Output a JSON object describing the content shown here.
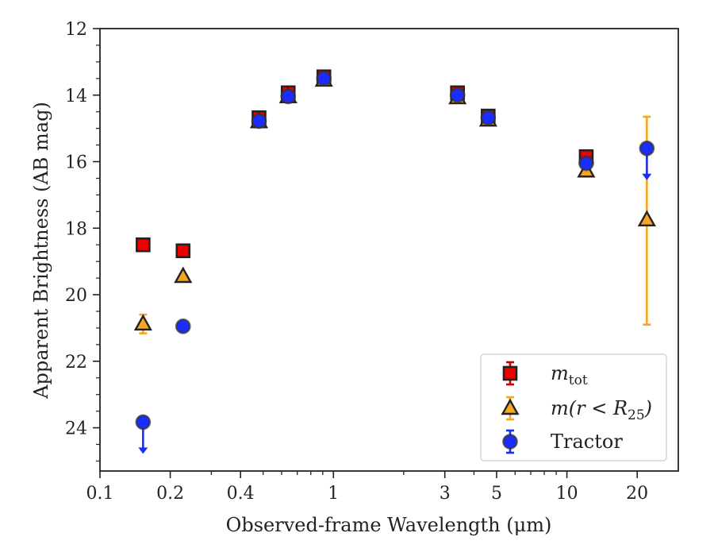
{
  "chart_data": {
    "type": "scatter",
    "xlabel": "Observed-frame Wavelength (μm)",
    "ylabel": "Apparent Brightness (AB mag)",
    "xscale": "log",
    "xlim": [
      0.1,
      30
    ],
    "ylim": [
      25.3,
      12
    ],
    "y_inverted": true,
    "x_ticks": [
      {
        "value": 0.1,
        "label": "0.1"
      },
      {
        "value": 0.2,
        "label": "0.2"
      },
      {
        "value": 0.4,
        "label": "0.4"
      },
      {
        "value": 1,
        "label": "1"
      },
      {
        "value": 3,
        "label": "3"
      },
      {
        "value": 5,
        "label": "5"
      },
      {
        "value": 10,
        "label": "10"
      },
      {
        "value": 20,
        "label": "20"
      }
    ],
    "y_ticks": [
      {
        "value": 12,
        "label": "12"
      },
      {
        "value": 14,
        "label": "14"
      },
      {
        "value": 16,
        "label": "16"
      },
      {
        "value": 18,
        "label": "18"
      },
      {
        "value": 20,
        "label": "20"
      },
      {
        "value": 22,
        "label": "22"
      },
      {
        "value": 24,
        "label": "24"
      }
    ],
    "grid": false,
    "legend_position": "lower-right",
    "series": [
      {
        "name": "m_tot",
        "legend": {
          "base": "m",
          "sub": "tot"
        },
        "marker": "square",
        "color": "#ee0000",
        "errcolor": "#cc0000",
        "points": [
          {
            "x": 0.153,
            "y": 18.5
          },
          {
            "x": 0.227,
            "y": 18.68
          },
          {
            "x": 0.48,
            "y": 14.68,
            "yerr": [
              0.12,
              0.12
            ]
          },
          {
            "x": 0.64,
            "y": 13.93
          },
          {
            "x": 0.91,
            "y": 13.45
          },
          {
            "x": 3.4,
            "y": 13.93
          },
          {
            "x": 4.6,
            "y": 14.63
          },
          {
            "x": 12.1,
            "y": 15.85
          }
        ]
      },
      {
        "name": "m(r < R25)",
        "legend": {
          "base": "m(r < R",
          "sub": "25",
          "tail": ")"
        },
        "marker": "triangle",
        "color": "#f5a623",
        "errcolor": "#f5a623",
        "points": [
          {
            "x": 0.153,
            "y": 20.88,
            "yerr": [
              0.28,
              0.28
            ]
          },
          {
            "x": 0.227,
            "y": 19.45
          },
          {
            "x": 0.48,
            "y": 14.8
          },
          {
            "x": 0.64,
            "y": 14.05
          },
          {
            "x": 0.91,
            "y": 13.55
          },
          {
            "x": 3.4,
            "y": 14.08
          },
          {
            "x": 4.6,
            "y": 14.75
          },
          {
            "x": 12.1,
            "y": 16.28
          },
          {
            "x": 22.0,
            "y": 17.75,
            "yerr": [
              3.1,
              3.15
            ]
          }
        ]
      },
      {
        "name": "Tractor",
        "legend": {
          "base": "Tractor"
        },
        "marker": "circle",
        "color": "#1a2cff",
        "errcolor": "#1a2cff",
        "points": [
          {
            "x": 0.153,
            "y": 23.83,
            "upper_limit": true
          },
          {
            "x": 0.227,
            "y": 20.95
          },
          {
            "x": 0.48,
            "y": 14.78
          },
          {
            "x": 0.64,
            "y": 14.04
          },
          {
            "x": 0.91,
            "y": 13.5
          },
          {
            "x": 3.4,
            "y": 14.0
          },
          {
            "x": 4.6,
            "y": 14.68
          },
          {
            "x": 12.1,
            "y": 16.05
          },
          {
            "x": 22.0,
            "y": 15.6,
            "upper_limit": true
          }
        ]
      }
    ]
  }
}
